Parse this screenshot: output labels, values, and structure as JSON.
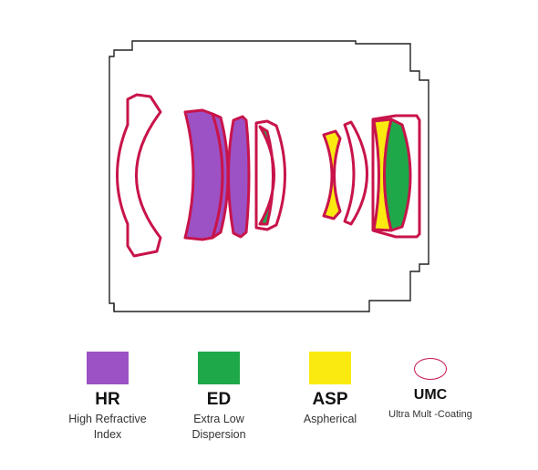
{
  "colors": {
    "hr": "#9c52c5",
    "ed": "#1fa84a",
    "asp": "#fbea10",
    "outline": "#c8144a",
    "housing": "#222222"
  },
  "legend": [
    {
      "key": "hr",
      "abbr": "HR",
      "lines": [
        "High Refractive",
        "Index"
      ]
    },
    {
      "key": "ed",
      "abbr": "ED",
      "lines": [
        "Extra Low",
        "Dispersion"
      ]
    },
    {
      "key": "asp",
      "abbr": "ASP",
      "lines": [
        "Aspherical"
      ]
    },
    {
      "key": "umc",
      "abbr": "UMC",
      "lines": [
        "Ultra Mult -Coating"
      ]
    }
  ]
}
